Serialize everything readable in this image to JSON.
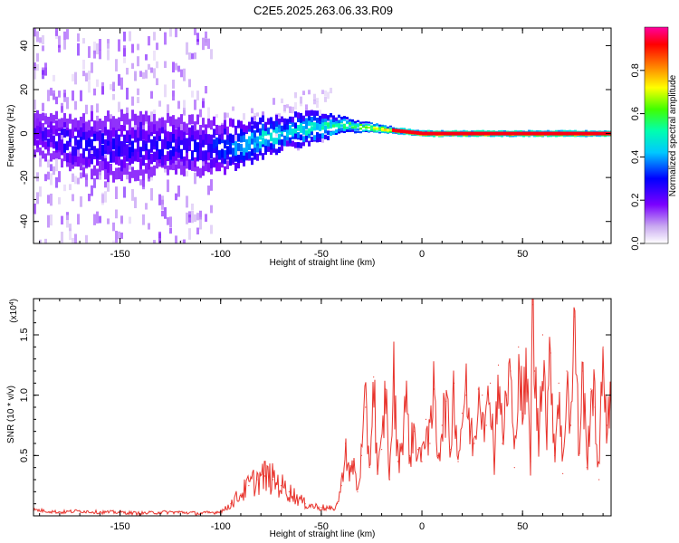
{
  "figure": {
    "title": "C2E5.2025.263.06.33.R09"
  },
  "chart_data": [
    {
      "type": "heatmap",
      "name": "spectrogram",
      "xlabel": "Height of straight line (km)",
      "ylabel": "Frequency (Hz)",
      "xlim": [
        -193,
        94
      ],
      "ylim": [
        -50,
        48
      ],
      "x_ticks": [
        "-150",
        "-100",
        "-50",
        "0",
        "50"
      ],
      "x_tick_values": [
        -150,
        -100,
        -50,
        0,
        50
      ],
      "y_ticks": [
        "-40",
        "-20",
        "0",
        "20",
        "40"
      ],
      "y_tick_values": [
        -40,
        -20,
        0,
        20,
        40
      ],
      "trace": {
        "description_points_x": [
          -190,
          -170,
          -150,
          -130,
          -110,
          -100,
          -90,
          -80,
          -70,
          -60,
          -50,
          -40,
          -30,
          -20,
          -10,
          0,
          20,
          50,
          94
        ],
        "center_freq_hz": [
          0,
          -5,
          -6,
          -5,
          -6,
          -6,
          -5,
          -2,
          0,
          2,
          3,
          4,
          3,
          2,
          1,
          0,
          0,
          0,
          0
        ],
        "spread_hz": [
          8,
          10,
          12,
          10,
          10,
          9,
          8,
          7,
          6,
          6,
          5,
          3,
          2,
          1.5,
          1,
          1,
          1,
          1,
          1
        ],
        "amplitude": [
          0.25,
          0.3,
          0.3,
          0.3,
          0.3,
          0.35,
          0.45,
          0.5,
          0.5,
          0.5,
          0.55,
          0.6,
          0.65,
          0.8,
          0.9,
          0.95,
          0.95,
          0.95,
          0.95
        ]
      },
      "colorbar": {
        "label": "Normalized spectral amplitude",
        "range": [
          0.0,
          1.0
        ],
        "ticks": [
          "0.0",
          "0.2",
          "0.4",
          "0.6",
          "0.8"
        ],
        "tick_values": [
          0.0,
          0.2,
          0.4,
          0.6,
          0.8
        ]
      }
    },
    {
      "type": "line",
      "name": "snr",
      "xlabel": "Height of straight line (km)",
      "ylabel": "SNR (10 * v/v)",
      "y_scale_label": "(x10",
      "y_scale_exponent": "4",
      "y_scale_close": ")",
      "xlim": [
        -193,
        94
      ],
      "ylim": [
        0,
        1.8
      ],
      "x_ticks": [
        "-150",
        "-100",
        "-50",
        "0",
        "50"
      ],
      "x_tick_values": [
        -150,
        -100,
        -50,
        0,
        50
      ],
      "y_ticks": [
        "0.5",
        "1.0",
        "1.5"
      ],
      "y_tick_values": [
        0.5,
        1.0,
        1.5
      ],
      "series": [
        {
          "name": "SNR",
          "color": "#e8332c",
          "x": [
            -193,
            -180,
            -170,
            -160,
            -150,
            -140,
            -130,
            -120,
            -110,
            -102,
            -98,
            -95,
            -90,
            -86,
            -82,
            -78,
            -74,
            -70,
            -66,
            -62,
            -58,
            -54,
            -50,
            -46,
            -44,
            -42,
            -40,
            -38,
            -36,
            -34,
            -32,
            -30,
            -28,
            -26,
            -24,
            -22,
            -20,
            -18,
            -16,
            -14,
            -12,
            -10,
            -8,
            -6,
            -4,
            -2,
            0,
            2,
            4,
            6,
            8,
            10,
            12,
            14,
            16,
            18,
            20,
            22,
            24,
            26,
            28,
            30,
            32,
            34,
            36,
            38,
            40,
            42,
            44,
            46,
            48,
            50,
            52,
            54,
            55,
            56,
            58,
            60,
            62,
            64,
            66,
            68,
            70,
            72,
            74,
            76,
            78,
            80,
            82,
            84,
            86,
            88,
            90,
            92,
            94
          ],
          "values": [
            0.05,
            0.03,
            0.04,
            0.03,
            0.03,
            0.02,
            0.03,
            0.03,
            0.02,
            0.03,
            0.05,
            0.1,
            0.18,
            0.25,
            0.3,
            0.33,
            0.3,
            0.25,
            0.2,
            0.15,
            0.1,
            0.08,
            0.07,
            0.06,
            0.05,
            0.1,
            0.25,
            0.6,
            0.3,
            0.45,
            0.2,
            0.5,
            0.9,
            0.4,
            1.15,
            0.35,
            0.55,
            1.05,
            0.3,
            1.15,
            0.45,
            0.6,
            1.0,
            0.5,
            0.7,
            0.55,
            0.45,
            0.8,
            0.6,
            1.05,
            0.5,
            0.75,
            0.95,
            0.55,
            1.1,
            0.45,
            0.85,
            1.0,
            0.7,
            0.6,
            1.05,
            1.0,
            0.75,
            1.1,
            0.45,
            1.25,
            0.6,
            1.0,
            1.2,
            0.4,
            1.4,
            0.85,
            1.15,
            0.45,
            1.75,
            1.2,
            0.6,
            1.5,
            0.7,
            1.35,
            0.5,
            1.1,
            0.35,
            1.2,
            0.75,
            1.65,
            0.5,
            1.2,
            0.4,
            1.05,
            0.9,
            0.3,
            1.4,
            0.75,
            0.9
          ]
        }
      ]
    }
  ]
}
